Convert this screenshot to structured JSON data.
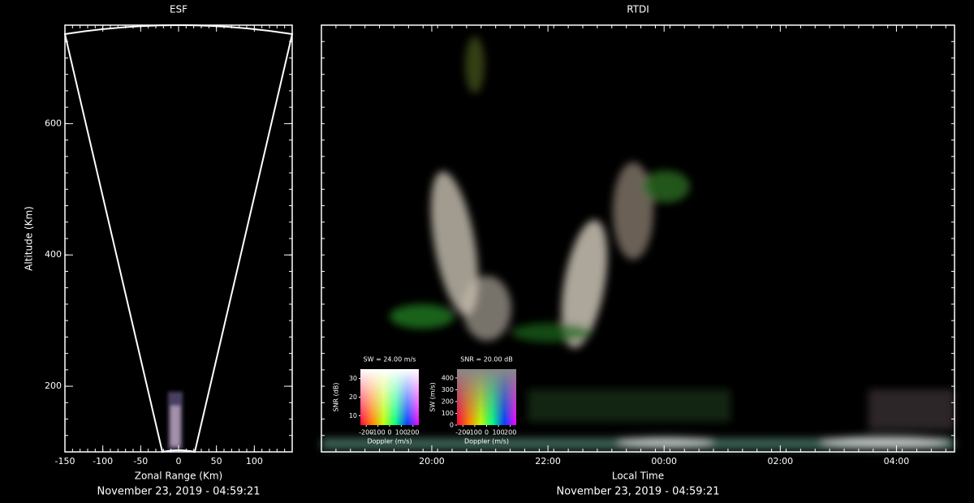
{
  "chart_data": [
    {
      "type": "fan",
      "title": "ESF",
      "xlabel": "Zonal Range (Km)",
      "ylabel": "Altitude (Km)",
      "footer": "November 23, 2019 - 04:59:21",
      "xlim": [
        -150,
        150
      ],
      "xticks": [
        -150,
        -100,
        -50,
        0,
        50,
        100
      ],
      "ylim": [
        100,
        750
      ],
      "yticks": [
        200,
        400,
        600
      ]
    },
    {
      "type": "rtdi",
      "title": "RTDI",
      "xlabel": "Local Time",
      "footer": "November 23, 2019 - 04:59:21",
      "xlim": [
        18.1,
        29
      ],
      "xticks": [
        {
          "value": 20,
          "label": "20:00"
        },
        {
          "value": 22,
          "label": "22:00"
        },
        {
          "value": 24,
          "label": "00:00"
        },
        {
          "value": 26,
          "label": "02:00"
        },
        {
          "value": 28,
          "label": "04:00"
        }
      ],
      "ylim": [
        100,
        750
      ],
      "color_keys": [
        {
          "title": "SW = 24.00 m/s",
          "xlabel": "Doppler (m/s)",
          "ylabel": "SNR (dB)",
          "xlim": [
            -250,
            250
          ],
          "xticks": [
            -200,
            -100,
            0,
            100,
            200
          ],
          "ylim": [
            5,
            35
          ],
          "yticks": [
            10,
            20,
            30
          ]
        },
        {
          "title": "SNR = 20.00 dB",
          "xlabel": "Doppler (m/s)",
          "ylabel": "SW (m/s)",
          "xlim": [
            -250,
            250
          ],
          "xticks": [
            -200,
            -100,
            0,
            100,
            200
          ],
          "ylim": [
            0,
            475
          ],
          "yticks": [
            0,
            100,
            200,
            300,
            400
          ]
        }
      ]
    }
  ]
}
